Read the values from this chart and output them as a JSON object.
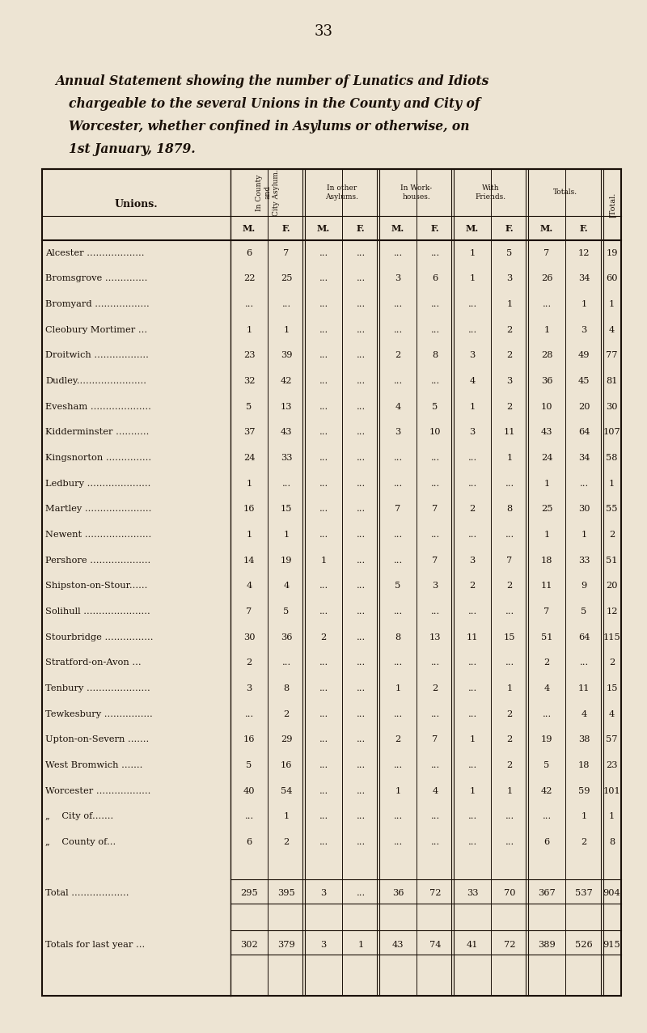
{
  "page_number": "33",
  "title_lines": [
    "Annual Statement showing the number of Lunatics and Idiots",
    "chargeable to the several Unions in the County and City of",
    "Worcester, whether confined in Asylums or otherwise, on",
    "1st January, 1879."
  ],
  "background_color": "#ede4d3",
  "text_color": "#1a1008",
  "unions_label": "Unions.",
  "col_group_headers": [
    "In County\nand\nCity Asylum.",
    "In other\nAsylums.",
    "In Work-\nhouses.",
    "With\nFriends.",
    "Totals."
  ],
  "total_col_header": "[Total.",
  "col_sub": [
    "M.",
    "F.",
    "M.",
    "F.",
    "M.",
    "F.",
    "M.",
    "F.",
    "M.",
    "F."
  ],
  "rows": [
    {
      "union": "Alcester ...................",
      "data": [
        "6",
        "7",
        "...",
        "...",
        "...",
        "...",
        "1",
        "5",
        "7",
        "12",
        "19"
      ]
    },
    {
      "union": "Bromsgrove ..............",
      "data": [
        "22",
        "25",
        "...",
        "...",
        "3",
        "6",
        "1",
        "3",
        "26",
        "34",
        "60"
      ]
    },
    {
      "union": "Bromyard ..................",
      "data": [
        "...",
        "...",
        "...",
        "...",
        "...",
        "...",
        "...",
        "1",
        "...",
        "1",
        "1"
      ]
    },
    {
      "union": "Cleobury Mortimer ...",
      "data": [
        "1",
        "1",
        "...",
        "...",
        "...",
        "...",
        "...",
        "2",
        "1",
        "3",
        "4"
      ]
    },
    {
      "union": "Droitwich ..................",
      "data": [
        "23",
        "39",
        "...",
        "...",
        "2",
        "8",
        "3",
        "2",
        "28",
        "49",
        "77"
      ]
    },
    {
      "union": "Dudley.......................",
      "data": [
        "32",
        "42",
        "...",
        "...",
        "...",
        "...",
        "4",
        "3",
        "36",
        "45",
        "81"
      ]
    },
    {
      "union": "Evesham ....................",
      "data": [
        "5",
        "13",
        "...",
        "...",
        "4",
        "5",
        "1",
        "2",
        "10",
        "20",
        "30"
      ]
    },
    {
      "union": "Kidderminster ...........",
      "data": [
        "37",
        "43",
        "...",
        "...",
        "3",
        "10",
        "3",
        "11",
        "43",
        "64",
        "107"
      ]
    },
    {
      "union": "Kingsnorton ...............",
      "data": [
        "24",
        "33",
        "...",
        "...",
        "...",
        "...",
        "...",
        "1",
        "24",
        "34",
        "58"
      ]
    },
    {
      "union": "Ledbury .....................",
      "data": [
        "1",
        "...",
        "...",
        "...",
        "...",
        "...",
        "...",
        "...",
        "1",
        "...",
        "1"
      ]
    },
    {
      "union": "Martley ......................",
      "data": [
        "16",
        "15",
        "...",
        "...",
        "7",
        "7",
        "2",
        "8",
        "25",
        "30",
        "55"
      ]
    },
    {
      "union": "Newent ......................",
      "data": [
        "1",
        "1",
        "...",
        "...",
        "...",
        "...",
        "...",
        "...",
        "1",
        "1",
        "2"
      ]
    },
    {
      "union": "Pershore ....................",
      "data": [
        "14",
        "19",
        "1",
        "...",
        "...",
        "7",
        "3",
        "7",
        "18",
        "33",
        "51"
      ]
    },
    {
      "union": "Shipston-on-Stour......",
      "data": [
        "4",
        "4",
        "...",
        "...",
        "5",
        "3",
        "2",
        "2",
        "11",
        "9",
        "20"
      ]
    },
    {
      "union": "Solihull ......................",
      "data": [
        "7",
        "5",
        "...",
        "...",
        "...",
        "...",
        "...",
        "...",
        "7",
        "5",
        "12"
      ]
    },
    {
      "union": "Stourbridge ................",
      "data": [
        "30",
        "36",
        "2",
        "...",
        "8",
        "13",
        "11",
        "15",
        "51",
        "64",
        "115"
      ]
    },
    {
      "union": "Stratford-on-Avon ...",
      "data": [
        "2",
        "...",
        "...",
        "...",
        "...",
        "...",
        "...",
        "...",
        "2",
        "...",
        "2"
      ]
    },
    {
      "union": "Tenbury .....................",
      "data": [
        "3",
        "8",
        "...",
        "...",
        "1",
        "2",
        "...",
        "1",
        "4",
        "11",
        "15"
      ]
    },
    {
      "union": "Tewkesbury ................",
      "data": [
        "...",
        "2",
        "...",
        "...",
        "...",
        "...",
        "...",
        "2",
        "...",
        "4",
        "4"
      ]
    },
    {
      "union": "Upton-on-Severn .......",
      "data": [
        "16",
        "29",
        "...",
        "...",
        "2",
        "7",
        "1",
        "2",
        "19",
        "38",
        "57"
      ]
    },
    {
      "union": "West Bromwich .......",
      "data": [
        "5",
        "16",
        "...",
        "...",
        "...",
        "...",
        "...",
        "2",
        "5",
        "18",
        "23"
      ]
    },
    {
      "union": "Worcester ..................",
      "data": [
        "40",
        "54",
        "...",
        "...",
        "1",
        "4",
        "1",
        "1",
        "42",
        "59",
        "101"
      ]
    },
    {
      "union": "„    City of.......",
      "data": [
        "...",
        "1",
        "...",
        "...",
        "...",
        "...",
        "...",
        "...",
        "...",
        "1",
        "1"
      ]
    },
    {
      "union": "„    County of...",
      "data": [
        "6",
        "2",
        "...",
        "...",
        "...",
        "...",
        "...",
        "...",
        "6",
        "2",
        "8"
      ]
    }
  ],
  "total_row": {
    "union": "Total ...................",
    "data": [
      "295",
      "395",
      "3",
      "...",
      "36",
      "72",
      "33",
      "70",
      "367",
      "537",
      "904"
    ]
  },
  "last_year_row": {
    "union": "Totals for last year ...",
    "data": [
      "302",
      "379",
      "3",
      "1",
      "43",
      "74",
      "41",
      "72",
      "389",
      "526",
      "915"
    ]
  }
}
